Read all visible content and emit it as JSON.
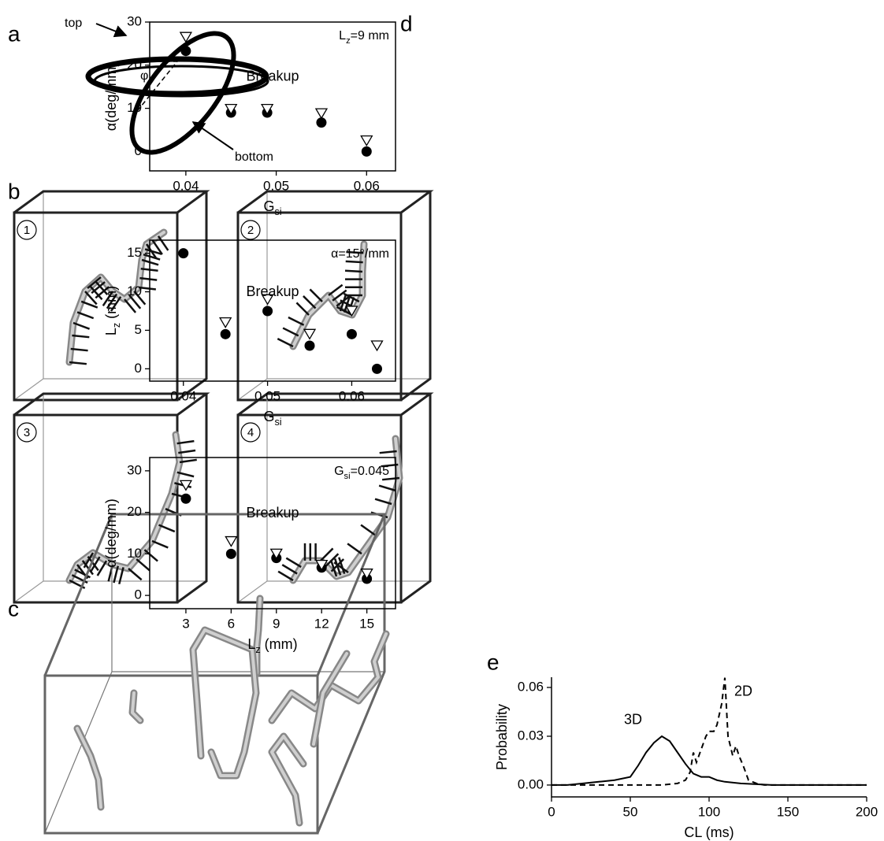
{
  "panels": {
    "a": "a",
    "b": "b",
    "c": "c",
    "d": "d",
    "e": "e"
  },
  "panel_a": {
    "top": "top",
    "bottom": "bottom",
    "angle": "φ"
  },
  "panel_b": {
    "frames": [
      "1",
      "2",
      "3",
      "4"
    ]
  },
  "chart_data": [
    {
      "type": "scatter",
      "x_label": [
        "G",
        "si"
      ],
      "y_label": [
        "α(deg/mm)"
      ],
      "annotation": [
        "L",
        "z",
        "=9 mm"
      ],
      "note": "Breakup",
      "note_color": "#8c8c8c",
      "x": [
        0.04,
        0.045,
        0.049,
        0.055,
        0.06
      ],
      "series": [
        {
          "marker": "circle",
          "color": "#000000",
          "values": [
            23.3,
            9,
            9,
            6.7,
            0
          ]
        },
        {
          "marker": "triangle",
          "color": "#000000",
          "values": [
            26.5,
            9.8,
            9.8,
            8.8,
            2.5
          ]
        }
      ],
      "xlim": [
        0.036,
        0.0632
      ],
      "xticks": [
        0.04,
        0.05,
        0.06
      ],
      "ylim": [
        -4.5,
        30
      ],
      "yticks": [
        0,
        10,
        20,
        30
      ]
    },
    {
      "type": "scatter",
      "x_label": [
        "G",
        "si"
      ],
      "y_label": [
        "L",
        "z",
        " (mm)"
      ],
      "annotation": [
        "α=15°/mm"
      ],
      "note": "Breakup",
      "note_color": "#8c8c8c",
      "x": [
        0.04,
        0.045,
        0.05,
        0.055,
        0.06,
        0.063
      ],
      "series": [
        {
          "marker": "circle",
          "color": "#000000",
          "values": [
            15,
            4.5,
            7.5,
            3,
            4.5,
            0
          ]
        },
        {
          "marker": "triangle",
          "color": "#000000",
          "values": [
            null,
            6,
            9,
            4.5,
            7.5,
            3
          ]
        }
      ],
      "xlim": [
        0.036,
        0.0652
      ],
      "xticks": [
        0.04,
        0.05,
        0.06
      ],
      "ylim": [
        -1.6,
        16.7
      ],
      "yticks": [
        0,
        5,
        10,
        15
      ]
    },
    {
      "type": "scatter",
      "x_label": [
        "L",
        "z",
        " (mm)"
      ],
      "y_label": [
        "α(deg/mm)"
      ],
      "annotation": [
        "G",
        "si",
        "=0.045"
      ],
      "note": "Breakup",
      "note_color": "#8c8c8c",
      "x": [
        3,
        6,
        9,
        12,
        15
      ],
      "series": [
        {
          "marker": "circle",
          "color": "#000000",
          "values": [
            23.3,
            10,
            9,
            6.7,
            4
          ]
        },
        {
          "marker": "triangle",
          "color": "#000000",
          "values": [
            26.5,
            13,
            10,
            7.3,
            5.2
          ]
        }
      ],
      "xlim": [
        0.6,
        16.9
      ],
      "xticks": [
        3,
        6,
        9,
        12,
        15
      ],
      "ylim": [
        -3.2,
        33.2
      ],
      "yticks": [
        0,
        10,
        20,
        30
      ]
    },
    {
      "type": "line",
      "x_label": [
        "CL (ms)"
      ],
      "y_label": [
        "Probability"
      ],
      "series": [
        {
          "name": "3D",
          "color": "#000000",
          "dash": false,
          "x": [
            0,
            10,
            20,
            30,
            40,
            50,
            55,
            60,
            65,
            70,
            75,
            80,
            85,
            90,
            95,
            100,
            105,
            110,
            120,
            130,
            140,
            160,
            180,
            200
          ],
          "y": [
            0,
            0,
            0.001,
            0.002,
            0.003,
            0.005,
            0.012,
            0.02,
            0.026,
            0.03,
            0.027,
            0.02,
            0.013,
            0.007,
            0.005,
            0.005,
            0.003,
            0.002,
            0.001,
            0.0005,
            0,
            0,
            0,
            0
          ]
        },
        {
          "name": "2D",
          "color": "#000000",
          "dash": true,
          "x": [
            0,
            20,
            40,
            60,
            70,
            80,
            85,
            88,
            90,
            92,
            95,
            98,
            100,
            103,
            105,
            108,
            110,
            112,
            115,
            117,
            119,
            122,
            125,
            130,
            135,
            160,
            200
          ],
          "y": [
            0,
            0,
            0,
            0,
            0,
            0.001,
            0.003,
            0.008,
            0.02,
            0.014,
            0.022,
            0.03,
            0.033,
            0.033,
            0.037,
            0.05,
            0.066,
            0.03,
            0.018,
            0.024,
            0.018,
            0.011,
            0.003,
            0.001,
            0,
            0,
            0
          ]
        }
      ],
      "xlim": [
        0,
        200
      ],
      "xticks": [
        0,
        50,
        100,
        150,
        200
      ],
      "ylim": [
        -0.0073,
        0.0663
      ],
      "yticks": [
        {
          "value": 0,
          "label": "0.00"
        },
        {
          "value": 0.03,
          "label": "0.03"
        },
        {
          "value": 0.06,
          "label": "0.06"
        }
      ]
    }
  ]
}
